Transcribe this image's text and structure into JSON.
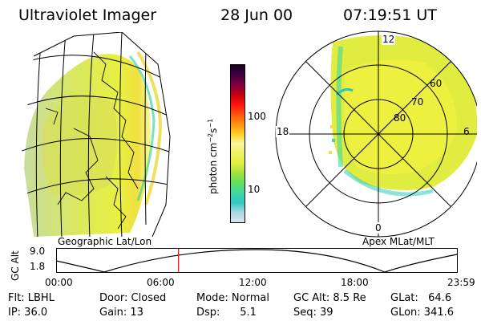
{
  "header": {
    "instrument": "Ultraviolet Imager",
    "date": "28 Jun 00",
    "time": "07:19:51 UT"
  },
  "colorbar": {
    "unit_label": "photon cm",
    "ticks": [
      "100",
      "10"
    ],
    "colors": [
      "#d9e6ea",
      "#a8d8e0",
      "#30c8c8",
      "#40d8a0",
      "#60e060",
      "#a0e040",
      "#e0f040",
      "#f0f060",
      "#f8f8a0",
      "#ffd020",
      "#ff9010",
      "#ff5010",
      "#ff1010",
      "#c00010",
      "#800040",
      "#400040",
      "#1a0020"
    ]
  },
  "left_panel": {
    "caption": "Geographic Lat/Lon"
  },
  "right_panel": {
    "caption": "Apex MLat/MLT",
    "mlt_labels": {
      "top": "12",
      "left": "18",
      "right": "6",
      "bottom": "0"
    },
    "lat_labels": [
      "60",
      "70",
      "80"
    ]
  },
  "altitude_plot": {
    "ylabel": "GC Alt",
    "yticks": [
      "9.0",
      "1.8"
    ],
    "xticks": [
      "00:00",
      "06:00",
      "12:00",
      "18:00",
      "23:59"
    ],
    "current_time_hours": 7.33,
    "marker_color": "#ff0000"
  },
  "footer": {
    "filter": "Flt: LBHL",
    "ip": "IP: 36.0",
    "door": "Door: Closed",
    "gain": "Gain: 13",
    "mode": "Mode: Normal",
    "dsp": "Dsp:      5.1",
    "gc_alt": "GC Alt: 8.5 Re",
    "seq": "Seq: 39",
    "glat": "GLat:   64.6",
    "glon": "GLon: 341.6"
  }
}
